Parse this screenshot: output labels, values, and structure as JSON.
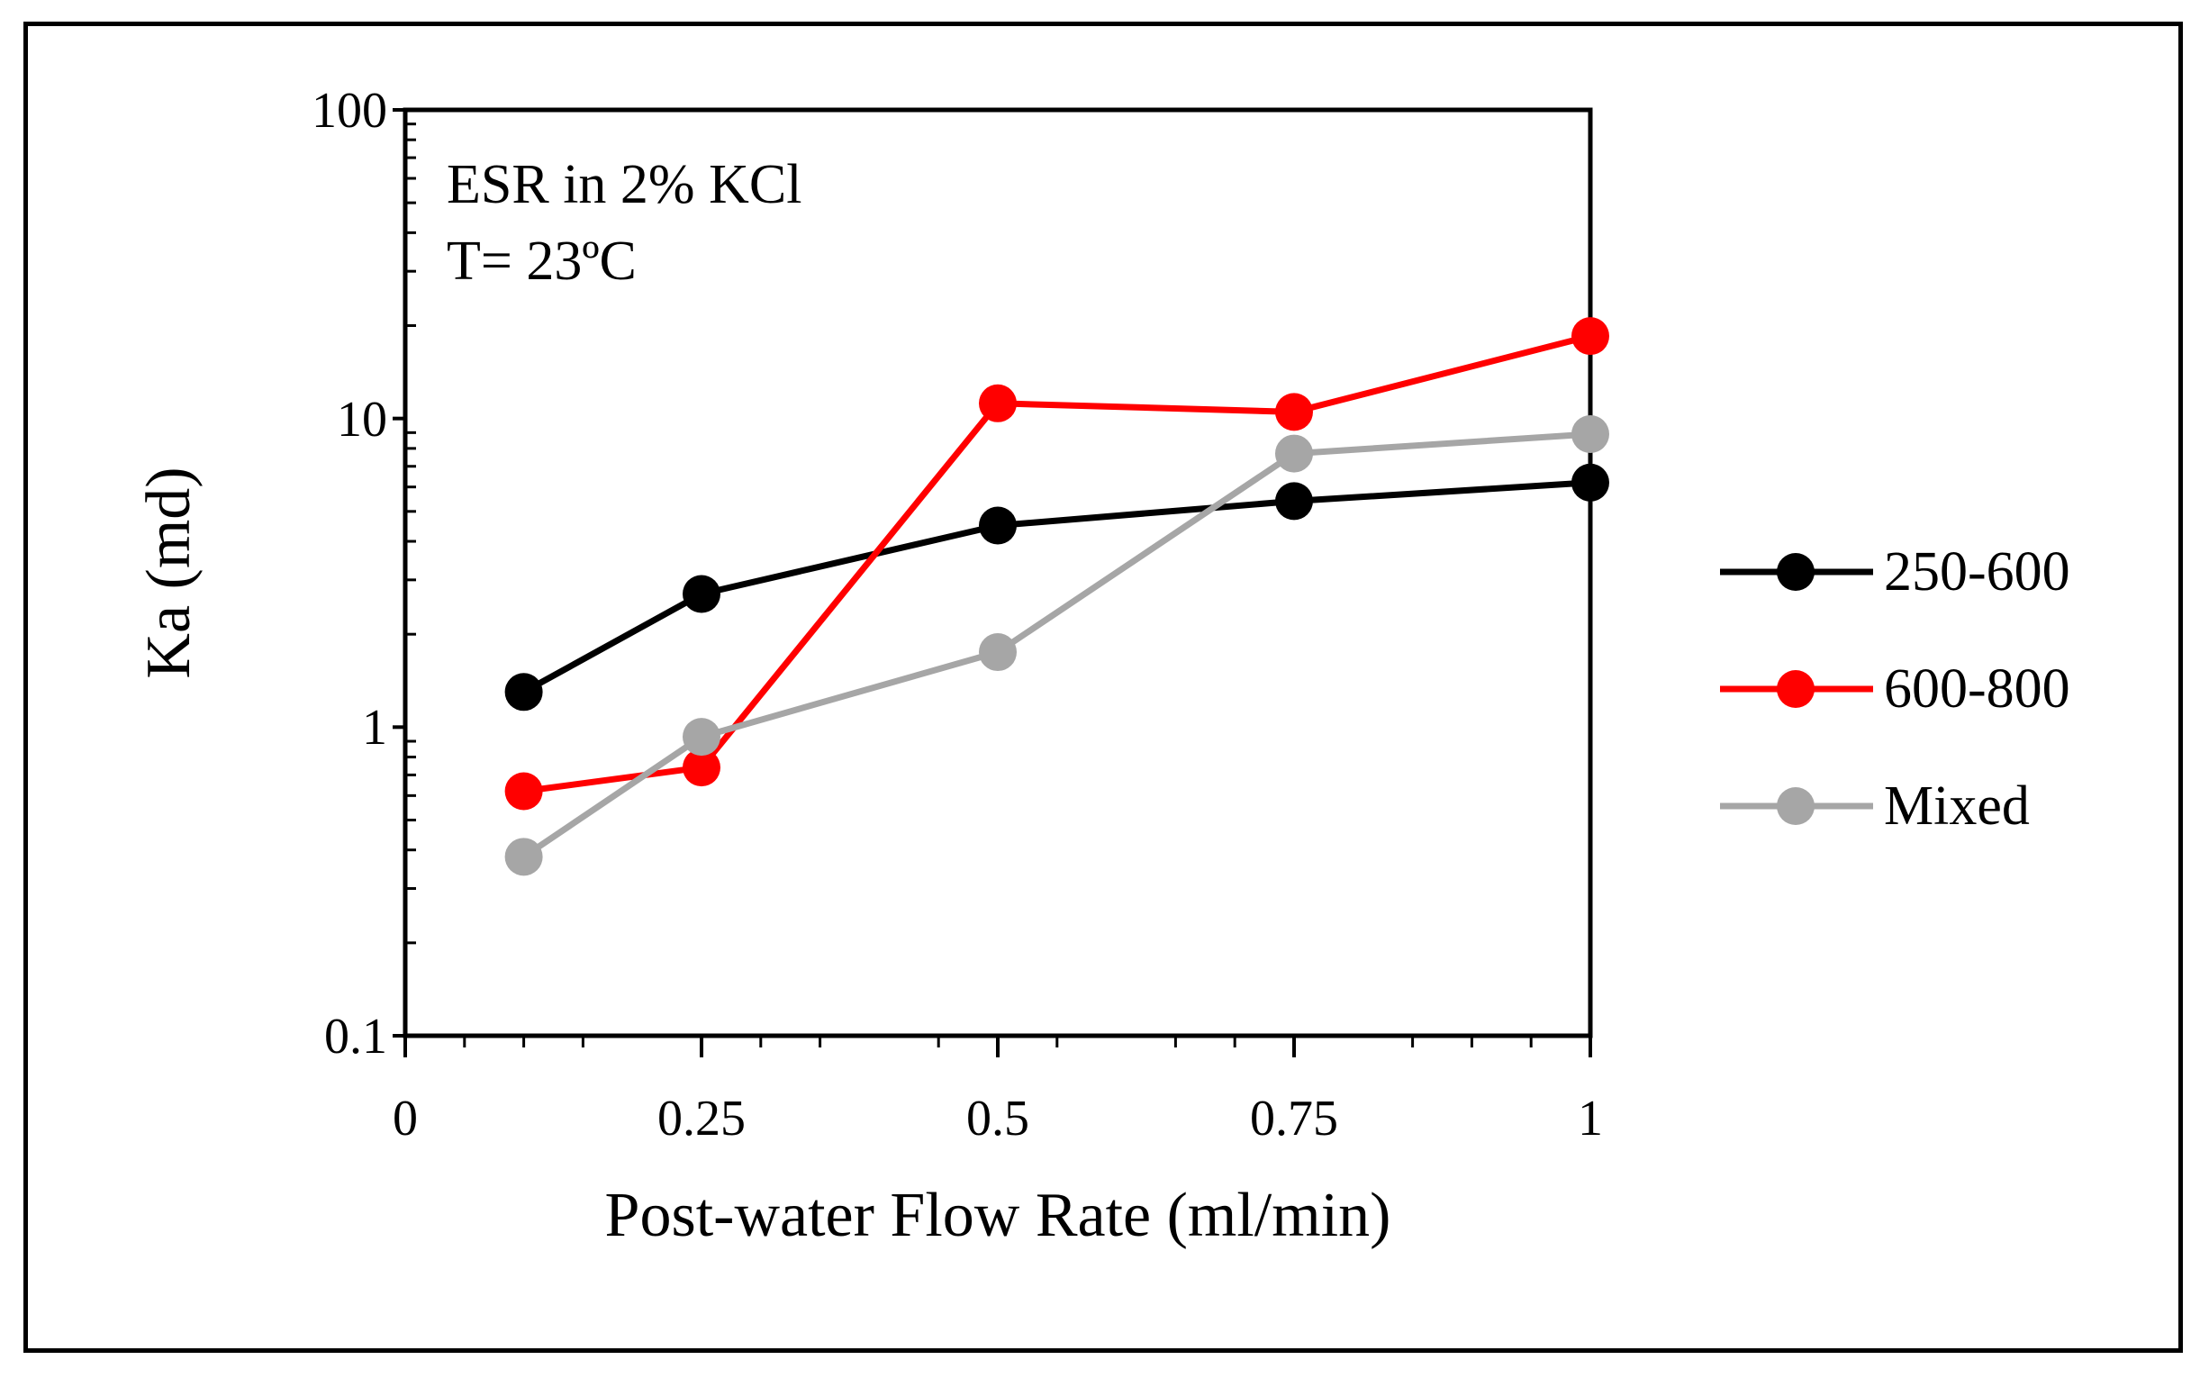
{
  "chart_data": {
    "type": "line",
    "title": "",
    "annotations": [
      "ESR in 2% KCl",
      "T= 23ºC"
    ],
    "xlabel": "Post-water Flow Rate (ml/min)",
    "ylabel": "Ka (md)",
    "xlim": [
      0,
      1
    ],
    "ylim": [
      0.1,
      100
    ],
    "yscale": "log",
    "x_ticks": [
      0,
      0.25,
      0.5,
      0.75,
      1
    ],
    "x_tick_labels": [
      "0",
      "0.25",
      "0.5",
      "0.75",
      "1"
    ],
    "y_ticks": [
      0.1,
      1,
      10,
      100
    ],
    "y_tick_labels": [
      "0.1",
      "1",
      "10",
      "100"
    ],
    "legend_position": "right",
    "series": [
      {
        "name": "250-600",
        "color": "#000000",
        "x": [
          0.1,
          0.25,
          0.5,
          0.75,
          1
        ],
        "values": [
          1.3,
          2.7,
          4.5,
          5.4,
          6.2
        ]
      },
      {
        "name": "600-800",
        "color": "#ff0000",
        "x": [
          0.1,
          0.25,
          0.5,
          0.75,
          1
        ],
        "values": [
          0.62,
          0.74,
          11.2,
          10.5,
          18.5
        ]
      },
      {
        "name": "Mixed",
        "color": "#a6a6a6",
        "x": [
          0.1,
          0.25,
          0.5,
          0.75,
          1
        ],
        "values": [
          0.38,
          0.93,
          1.75,
          7.7,
          8.9
        ]
      }
    ]
  }
}
